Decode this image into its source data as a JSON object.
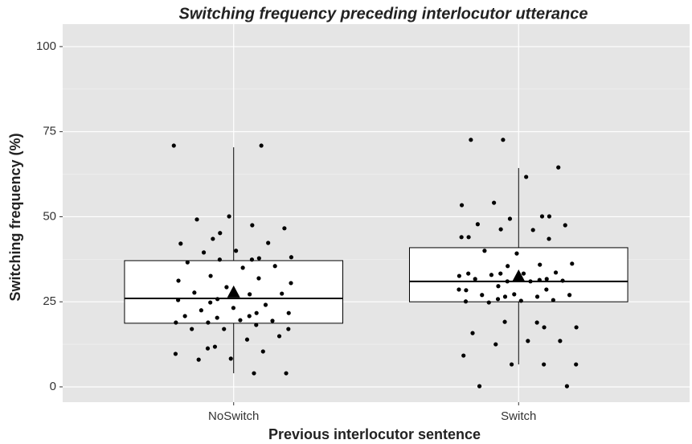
{
  "chart_data": {
    "type": "box",
    "title": "Switching frequency preceding interlocutor utterance",
    "xlabel": "Previous interlocutor sentence",
    "ylabel": "Switching frequency (%)",
    "categories": [
      "NoSwitch",
      "Switch"
    ],
    "ylim": [
      -4.5,
      106.6
    ],
    "yticks": [
      0,
      25,
      50,
      75,
      100
    ],
    "y_minor_ticks": [
      12.5,
      37.5,
      62.5,
      87.5
    ],
    "grid": true,
    "panel_color": "#e5e5e5",
    "box_color": "#ffffff",
    "point_color": "#000000",
    "boxes": [
      {
        "whisker_low": 4.0,
        "q1": 18.7,
        "median": 26.0,
        "q3": 37.1,
        "whisker_high": 70.4,
        "mean": 27.9,
        "points": [
          70.9,
          70.9,
          50.1,
          49.2,
          46.6,
          47.5,
          45.2,
          43.5,
          42.1,
          42.3,
          40.0,
          39.5,
          38.1,
          37.8,
          37.4,
          37.4,
          36.6,
          35.5,
          35.0,
          32.6,
          31.2,
          30.5,
          31.9,
          29.3,
          27.7,
          27.4,
          27.2,
          25.8,
          24.8,
          25.5,
          24.1,
          23.2,
          22.5,
          21.7,
          21.7,
          20.8,
          20.3,
          20.8,
          19.4,
          19.6,
          18.9,
          18.9,
          17.0,
          18.2,
          17.0,
          17.0,
          14.9,
          13.9,
          11.8,
          11.3,
          9.7,
          10.4,
          8.3,
          8.0,
          4.0,
          4.0
        ]
      },
      {
        "whisker_low": 6.6,
        "q1": 25.0,
        "median": 31.0,
        "q3": 40.9,
        "whisker_high": 64.3,
        "mean": 32.6,
        "points": [
          72.6,
          72.6,
          64.5,
          61.7,
          54.1,
          53.4,
          50.1,
          50.1,
          49.4,
          47.8,
          47.5,
          46.1,
          46.3,
          44.0,
          44.0,
          43.5,
          39.2,
          40.0,
          36.2,
          35.9,
          35.5,
          33.3,
          33.3,
          33.6,
          33.3,
          32.9,
          32.6,
          31.7,
          31.4,
          31.0,
          31.7,
          31.2,
          31.0,
          29.6,
          28.4,
          28.6,
          28.6,
          27.2,
          27.0,
          27.0,
          26.5,
          26.5,
          25.8,
          25.1,
          25.5,
          25.3,
          24.8,
          17.5,
          17.5,
          18.9,
          19.1,
          15.8,
          13.5,
          13.5,
          12.5,
          9.2,
          6.6,
          6.6,
          6.6,
          0.2,
          0.2
        ]
      }
    ]
  }
}
